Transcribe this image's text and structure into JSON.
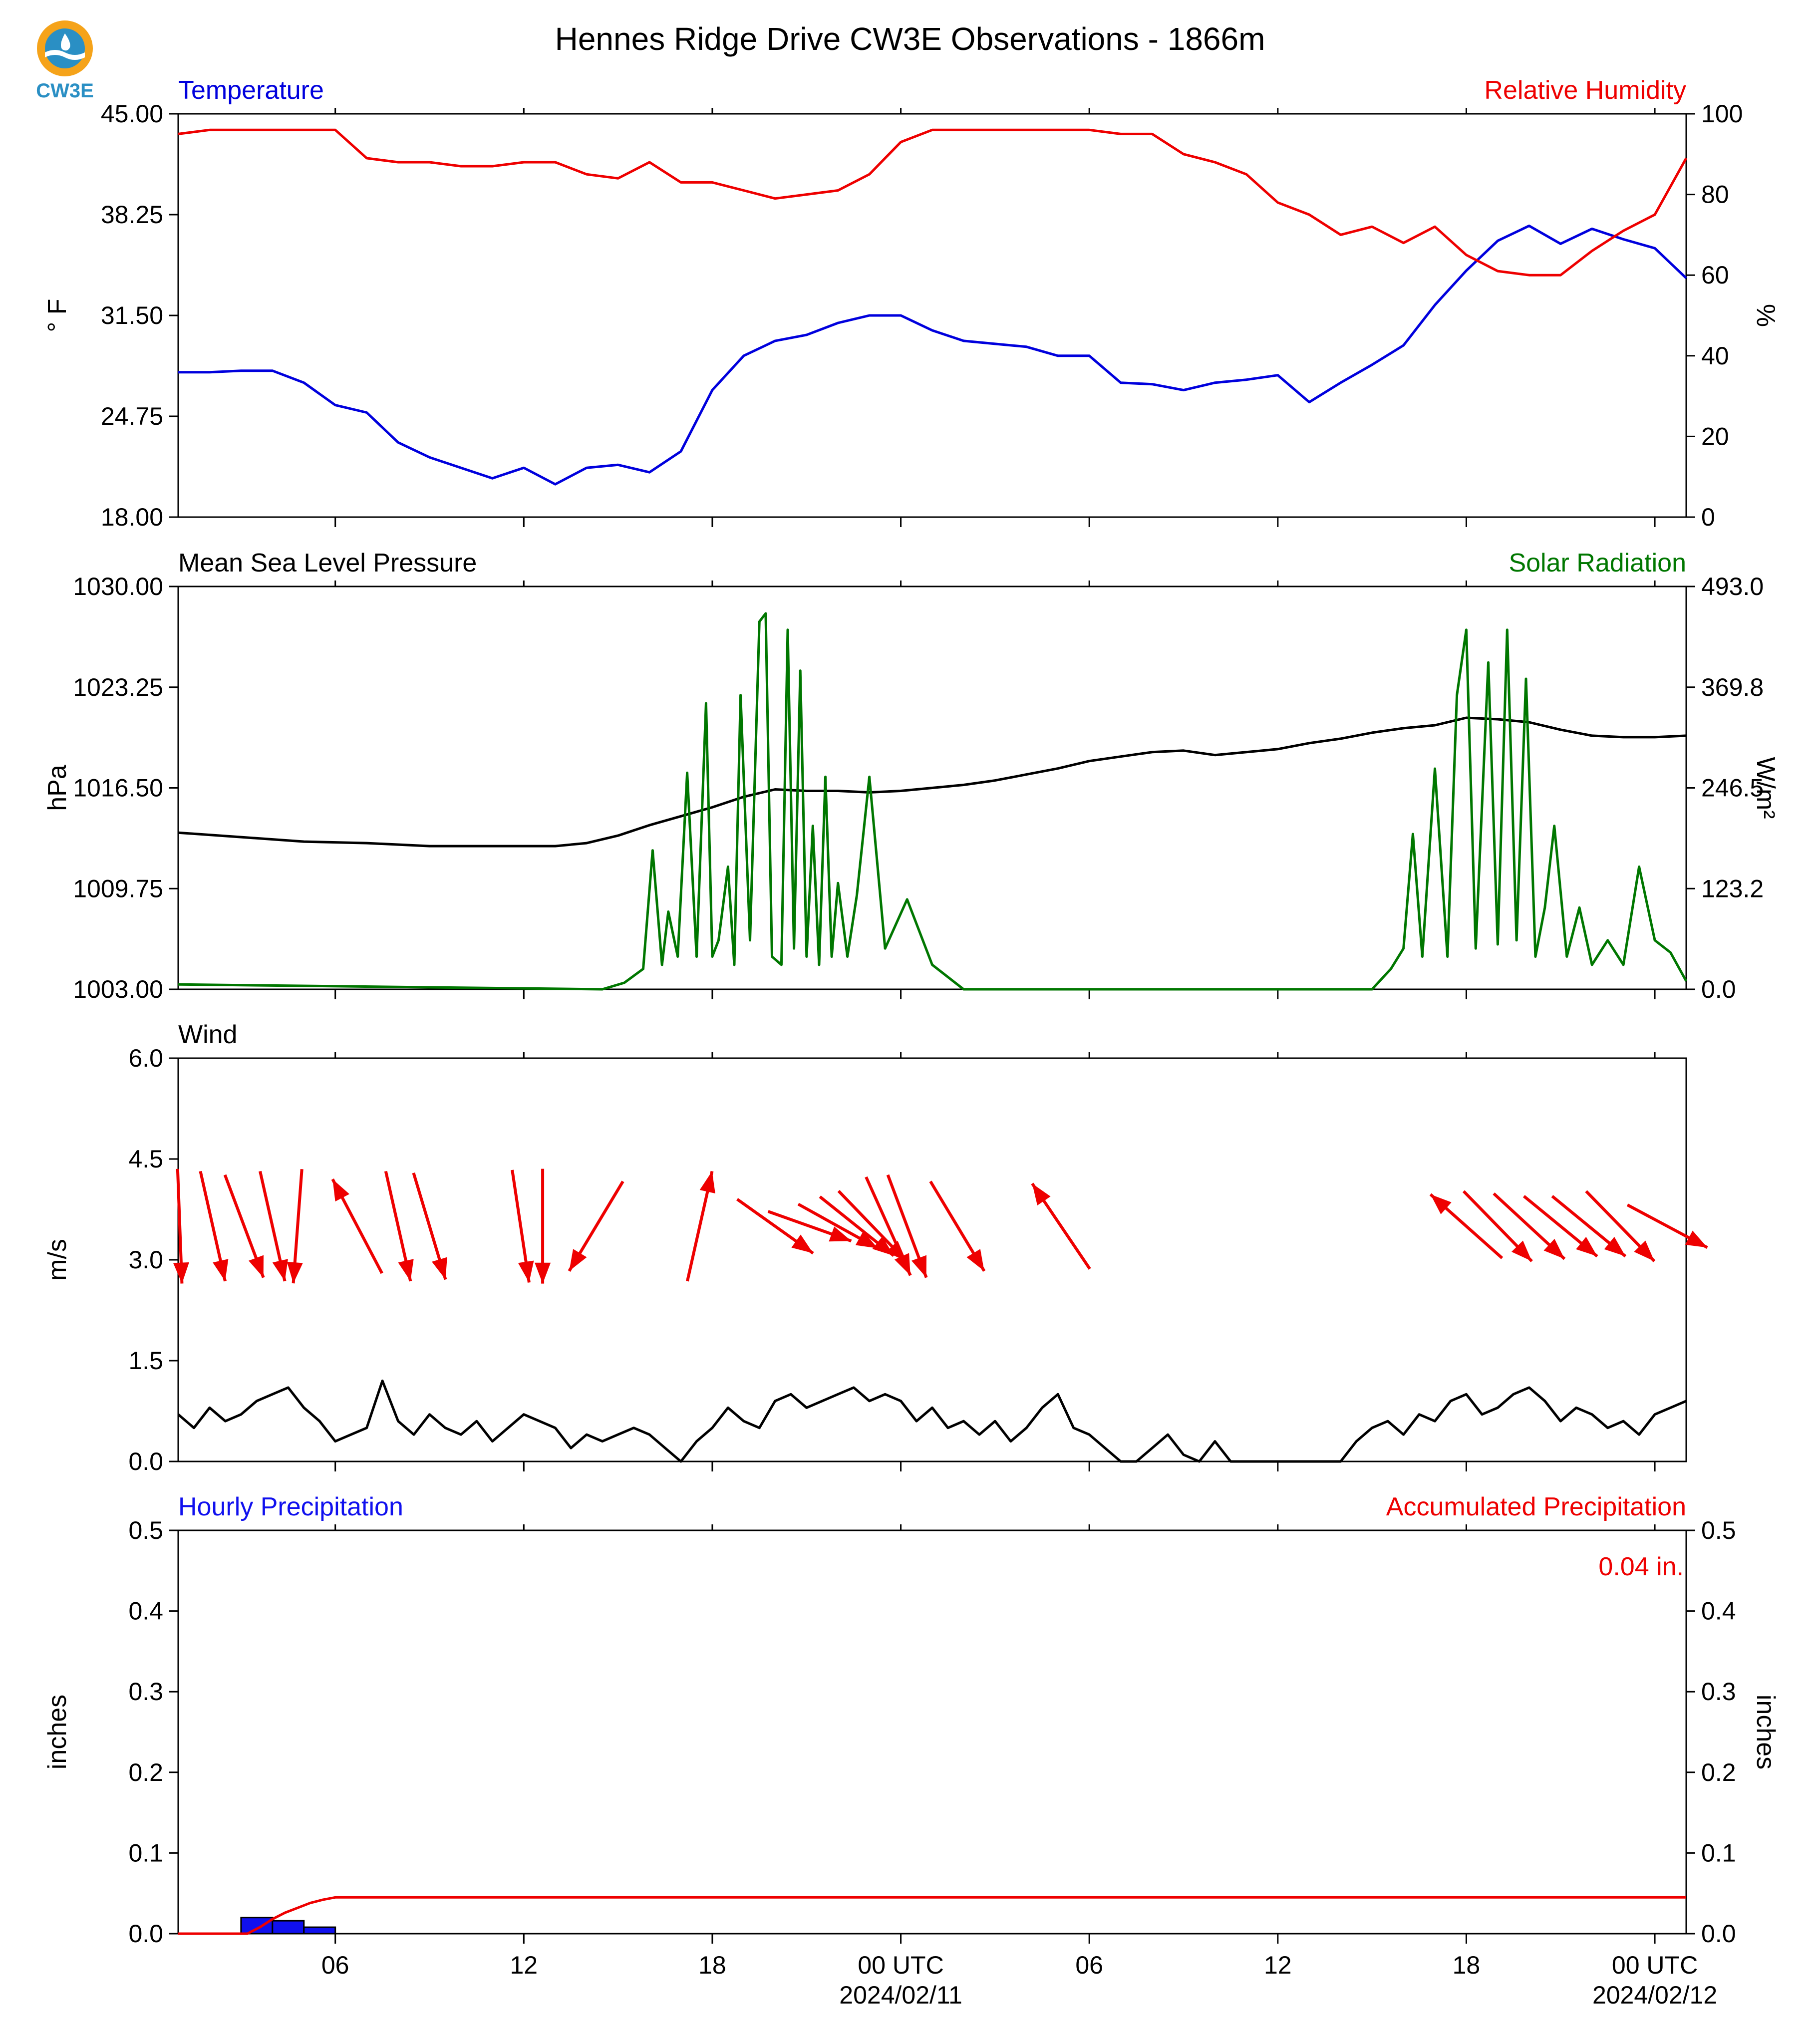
{
  "title": "Hennes Ridge Drive CW3E Observations - 1866m",
  "logo_text": "CW3E",
  "colors": {
    "temperature": "#0000dd",
    "humidity": "#ee0000",
    "pressure": "#000000",
    "solar": "#007700",
    "wind_speed": "#000000",
    "wind_arrow": "#ee0000",
    "hourly_precip": "#1010ee",
    "accum_precip": "#ee0000",
    "logo_orange": "#f5a31a",
    "logo_blue": "#2a8fc4"
  },
  "x_axis": {
    "unit": "hours since 2024-02-10 01:00 UTC",
    "range": [
      0,
      48
    ],
    "ticks": [
      {
        "x": 5,
        "label": "06",
        "sublabel": ""
      },
      {
        "x": 11,
        "label": "12",
        "sublabel": ""
      },
      {
        "x": 17,
        "label": "18",
        "sublabel": ""
      },
      {
        "x": 23,
        "label": "00 UTC",
        "sublabel": "2024/02/11"
      },
      {
        "x": 29,
        "label": "06",
        "sublabel": ""
      },
      {
        "x": 35,
        "label": "12",
        "sublabel": ""
      },
      {
        "x": 41,
        "label": "18",
        "sublabel": ""
      },
      {
        "x": 47,
        "label": "00 UTC",
        "sublabel": "2024/02/12"
      }
    ]
  },
  "chart_data": [
    {
      "type": "line",
      "panel": "temperature-humidity",
      "left_title": "Temperature",
      "right_title": "Relative Humidity",
      "ylabel": "° F",
      "ylabel_right": "%",
      "ylim": [
        18,
        45
      ],
      "ylim_right": [
        0,
        100
      ],
      "yticks": [
        "18.00",
        "24.75",
        "31.50",
        "38.25",
        "45.00"
      ],
      "yticks_right": [
        "0",
        "20",
        "40",
        "60",
        "80",
        "100"
      ],
      "series": [
        {
          "name": "Temperature",
          "axis": "left",
          "x": [
            0,
            1,
            2,
            3,
            4,
            5,
            6,
            7,
            8,
            9,
            10,
            11,
            12,
            13,
            14,
            15,
            16,
            17,
            18,
            19,
            20,
            21,
            22,
            23,
            24,
            25,
            26,
            27,
            28,
            29,
            30,
            31,
            32,
            33,
            34,
            35,
            36,
            37,
            38,
            39,
            40,
            41,
            42,
            43,
            44,
            45,
            46,
            47,
            48
          ],
          "y": [
            27.7,
            27.7,
            27.8,
            27.8,
            27.0,
            25.5,
            25.0,
            23.0,
            22.0,
            21.3,
            20.6,
            21.3,
            20.2,
            21.3,
            21.5,
            21.0,
            22.4,
            26.5,
            28.8,
            29.8,
            30.2,
            31.0,
            31.5,
            31.5,
            30.5,
            29.8,
            29.6,
            29.4,
            28.8,
            28.8,
            27.0,
            26.9,
            26.5,
            27.0,
            27.2,
            27.5,
            25.7,
            27.0,
            28.2,
            29.5,
            32.2,
            34.5,
            36.5,
            37.5,
            36.3,
            37.3,
            36.6,
            36.0,
            34.0
          ]
        },
        {
          "name": "Relative Humidity",
          "axis": "right",
          "x": [
            0,
            1,
            2,
            3,
            4,
            5,
            6,
            7,
            8,
            9,
            10,
            11,
            12,
            13,
            14,
            15,
            16,
            17,
            18,
            19,
            20,
            21,
            22,
            23,
            24,
            25,
            26,
            27,
            28,
            29,
            30,
            31,
            32,
            33,
            34,
            35,
            36,
            37,
            38,
            39,
            40,
            41,
            42,
            43,
            44,
            45,
            46,
            47,
            48
          ],
          "y": [
            95,
            96,
            96,
            96,
            96,
            96,
            89,
            88,
            88,
            87,
            87,
            88,
            88,
            85,
            84,
            88,
            83,
            83,
            81,
            79,
            80,
            81,
            85,
            93,
            96,
            96,
            96,
            96,
            96,
            96,
            95,
            95,
            90,
            88,
            85,
            78,
            75,
            70,
            72,
            68,
            72,
            65,
            61,
            60,
            60,
            66,
            71,
            75,
            89
          ]
        }
      ]
    },
    {
      "type": "line",
      "panel": "pressure-solar",
      "left_title": "Mean Sea Level Pressure",
      "right_title": "Solar Radiation",
      "ylabel": "hPa",
      "ylabel_right": "W/m²",
      "ylim": [
        1003,
        1030
      ],
      "ylim_right": [
        0,
        493
      ],
      "yticks": [
        "1003.00",
        "1009.75",
        "1016.50",
        "1023.25",
        "1030.00"
      ],
      "yticks_right": [
        "0.0",
        "123.2",
        "246.5",
        "369.8",
        "493.0"
      ],
      "series": [
        {
          "name": "Mean Sea Level Pressure",
          "axis": "left",
          "x": [
            0,
            2,
            4,
            6,
            8,
            10,
            11,
            12,
            13,
            14,
            15,
            16,
            17,
            18,
            19,
            20,
            21,
            22,
            23,
            24,
            25,
            26,
            27,
            28,
            29,
            30,
            31,
            32,
            33,
            34,
            35,
            36,
            37,
            38,
            39,
            40,
            41,
            42,
            43,
            44,
            45,
            46,
            47,
            48
          ],
          "y": [
            1013.5,
            1013.2,
            1012.9,
            1012.8,
            1012.6,
            1012.6,
            1012.6,
            1012.6,
            1012.8,
            1013.3,
            1014.0,
            1014.6,
            1015.2,
            1015.9,
            1016.4,
            1016.3,
            1016.3,
            1016.2,
            1016.3,
            1016.5,
            1016.7,
            1017.0,
            1017.4,
            1017.8,
            1018.3,
            1018.6,
            1018.9,
            1019.0,
            1018.7,
            1018.9,
            1019.1,
            1019.5,
            1019.8,
            1020.2,
            1020.5,
            1020.7,
            1021.2,
            1021.1,
            1020.9,
            1020.4,
            1020.0,
            1019.9,
            1019.9,
            1020.0
          ]
        },
        {
          "name": "Solar Radiation",
          "axis": "right",
          "x": [
            0,
            13.5,
            14.2,
            14.8,
            15.1,
            15.4,
            15.6,
            15.9,
            16.2,
            16.5,
            16.8,
            17.0,
            17.2,
            17.5,
            17.7,
            17.9,
            18.2,
            18.5,
            18.7,
            18.9,
            19.2,
            19.4,
            19.6,
            19.8,
            20.0,
            20.2,
            20.4,
            20.6,
            20.8,
            21.0,
            21.3,
            21.6,
            22.0,
            22.5,
            23.2,
            24.0,
            25,
            30,
            38.0,
            38.6,
            39.0,
            39.3,
            39.6,
            40.0,
            40.4,
            40.7,
            41.0,
            41.3,
            41.7,
            42.0,
            42.3,
            42.6,
            42.9,
            43.2,
            43.5,
            43.8,
            44.2,
            44.6,
            45.0,
            45.5,
            46.0,
            46.5,
            47.0,
            47.5,
            48
          ],
          "y": [
            6,
            0,
            8,
            25,
            170,
            30,
            95,
            40,
            265,
            40,
            350,
            40,
            60,
            150,
            30,
            360,
            60,
            450,
            460,
            40,
            30,
            440,
            50,
            390,
            40,
            200,
            30,
            260,
            40,
            130,
            40,
            115,
            260,
            50,
            110,
            30,
            0,
            0,
            0,
            25,
            50,
            190,
            40,
            270,
            40,
            360,
            440,
            50,
            400,
            55,
            440,
            60,
            380,
            40,
            100,
            200,
            40,
            100,
            30,
            60,
            30,
            150,
            60,
            45,
            10
          ]
        }
      ]
    },
    {
      "type": "line",
      "panel": "wind",
      "left_title": "Wind",
      "ylabel": "m/s",
      "ylim": [
        0,
        6
      ],
      "yticks": [
        "0.0",
        "1.5",
        "3.0",
        "4.5",
        "6.0"
      ],
      "series": [
        {
          "name": "Wind Speed",
          "axis": "left",
          "x": [
            0,
            0.5,
            1,
            1.5,
            2,
            2.5,
            3,
            3.5,
            4,
            4.5,
            5,
            5.5,
            6,
            6.5,
            7,
            7.5,
            8,
            8.5,
            9,
            9.5,
            10,
            10.5,
            11,
            11.5,
            12,
            12.5,
            13,
            13.5,
            14,
            14.5,
            15,
            15.5,
            16,
            16.5,
            17,
            17.5,
            18,
            18.5,
            19,
            19.5,
            20,
            20.5,
            21,
            21.5,
            22,
            22.5,
            23,
            23.5,
            24,
            24.5,
            25,
            25.5,
            26,
            26.5,
            27,
            27.5,
            28,
            28.5,
            29,
            29.5,
            30,
            30.5,
            31,
            31.5,
            32,
            32.5,
            33,
            33.5,
            34,
            34.5,
            35,
            35.5,
            36,
            36.5,
            37,
            37.5,
            38,
            38.5,
            39,
            39.5,
            40,
            40.5,
            41,
            41.5,
            42,
            42.5,
            43,
            43.5,
            44,
            44.5,
            45,
            45.5,
            46,
            46.5,
            47,
            47.5,
            48
          ],
          "y": [
            0.7,
            0.5,
            0.8,
            0.6,
            0.7,
            0.9,
            1.0,
            1.1,
            0.8,
            0.6,
            0.3,
            0.4,
            0.5,
            1.2,
            0.6,
            0.4,
            0.7,
            0.5,
            0.4,
            0.6,
            0.3,
            0.5,
            0.7,
            0.6,
            0.5,
            0.2,
            0.4,
            0.3,
            0.4,
            0.5,
            0.4,
            0.2,
            0.0,
            0.3,
            0.5,
            0.8,
            0.6,
            0.5,
            0.9,
            1.0,
            0.8,
            0.9,
            1.0,
            1.1,
            0.9,
            1.0,
            0.9,
            0.6,
            0.8,
            0.5,
            0.6,
            0.4,
            0.6,
            0.3,
            0.5,
            0.8,
            1.0,
            0.5,
            0.4,
            0.2,
            0.0,
            0.0,
            0.2,
            0.4,
            0.1,
            0.0,
            0.3,
            0.0,
            0.0,
            0.0,
            0.0,
            0.0,
            0.0,
            0.0,
            0.0,
            0.3,
            0.5,
            0.6,
            0.4,
            0.7,
            0.6,
            0.9,
            1.0,
            0.7,
            0.8,
            1.0,
            1.1,
            0.9,
            0.6,
            0.8,
            0.7,
            0.5,
            0.6,
            0.4,
            0.7,
            0.8,
            0.9
          ]
        }
      ],
      "arrows": [
        {
          "x": 0.05,
          "u": 0.05,
          "v": -1.0
        },
        {
          "x": 1.1,
          "u": 0.3,
          "v": -1.0
        },
        {
          "x": 2.1,
          "u": 0.5,
          "v": -1.0
        },
        {
          "x": 3.0,
          "u": 0.3,
          "v": -1.0
        },
        {
          "x": 3.8,
          "u": -0.1,
          "v": -1.0
        },
        {
          "x": 5.7,
          "u": -0.7,
          "v": 1.0
        },
        {
          "x": 7.0,
          "u": 0.3,
          "v": -1.0
        },
        {
          "x": 8.0,
          "u": 0.4,
          "v": -1.0
        },
        {
          "x": 10.9,
          "u": 0.2,
          "v": -1.0
        },
        {
          "x": 11.6,
          "u": 0.0,
          "v": -1.0
        },
        {
          "x": 13.3,
          "u": -0.8,
          "v": -1.0
        },
        {
          "x": 16.6,
          "u": 0.3,
          "v": 1.0
        },
        {
          "x": 19.0,
          "u": 1.5,
          "v": -0.8
        },
        {
          "x": 20.1,
          "u": 1.5,
          "v": -0.4
        },
        {
          "x": 21.0,
          "u": 1.2,
          "v": -0.5
        },
        {
          "x": 21.6,
          "u": 1.0,
          "v": -0.6
        },
        {
          "x": 22.1,
          "u": 0.9,
          "v": -0.7
        },
        {
          "x": 22.6,
          "u": 0.6,
          "v": -1.0
        },
        {
          "x": 23.2,
          "u": 0.5,
          "v": -1.0
        },
        {
          "x": 24.8,
          "u": 0.8,
          "v": -1.0
        },
        {
          "x": 28.1,
          "u": -0.9,
          "v": 1.0
        },
        {
          "x": 41.0,
          "u": -1.5,
          "v": 1.0
        },
        {
          "x": 42.0,
          "u": 1.3,
          "v": -1.0
        },
        {
          "x": 43.0,
          "u": 1.3,
          "v": -0.9
        },
        {
          "x": 44.0,
          "u": 1.3,
          "v": -0.8
        },
        {
          "x": 44.9,
          "u": 1.3,
          "v": -0.8
        },
        {
          "x": 45.9,
          "u": 1.3,
          "v": -1.0
        },
        {
          "x": 47.4,
          "u": 1.0,
          "v": -0.4
        }
      ]
    },
    {
      "type": "bar",
      "panel": "precipitation",
      "left_title": "Hourly Precipitation",
      "right_title": "Accumulated Precipitation",
      "total_label": "0.04 in.",
      "ylabel": "inches",
      "ylabel_right": "inches",
      "ylim": [
        0,
        0.5
      ],
      "ylim_right": [
        0,
        0.5
      ],
      "yticks": [
        "0.0",
        "0.1",
        "0.2",
        "0.3",
        "0.4",
        "0.5"
      ],
      "yticks_right": [
        "0.0",
        "0.1",
        "0.2",
        "0.3",
        "0.4",
        "0.5"
      ],
      "bars": [
        {
          "x0": 2.0,
          "x1": 3.0,
          "value": 0.02
        },
        {
          "x0": 3.0,
          "x1": 4.0,
          "value": 0.016
        },
        {
          "x0": 4.0,
          "x1": 5.0,
          "value": 0.008
        }
      ],
      "series": [
        {
          "name": "Accumulated Precipitation",
          "axis": "right",
          "x": [
            0,
            2.2,
            2.6,
            3.0,
            3.4,
            3.8,
            4.2,
            4.6,
            5.0,
            48
          ],
          "y": [
            0,
            0,
            0.008,
            0.018,
            0.026,
            0.032,
            0.038,
            0.042,
            0.045,
            0.045
          ]
        }
      ]
    }
  ]
}
